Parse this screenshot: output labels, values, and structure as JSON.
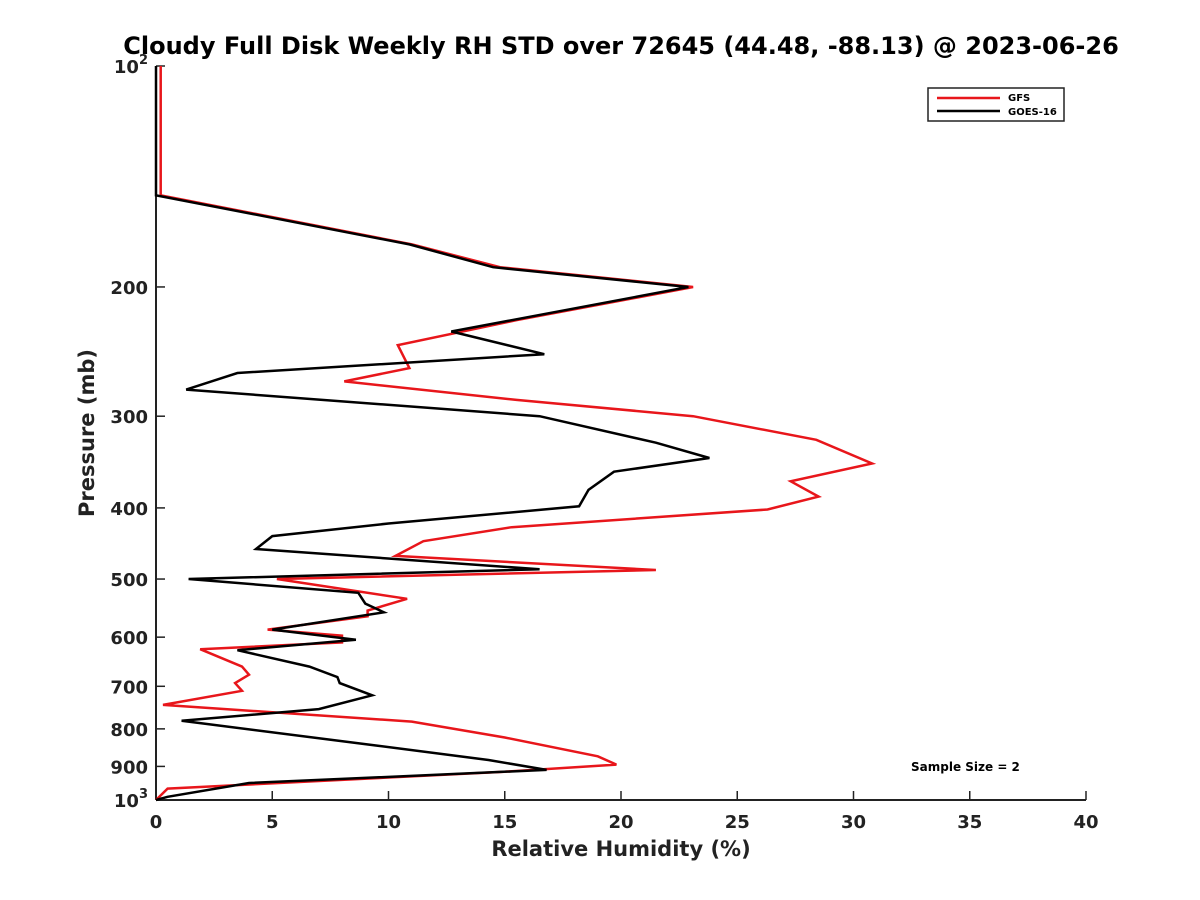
{
  "chart_data": {
    "type": "line",
    "title": "Cloudy Full Disk Weekly RH STD over 72645 (44.48, -88.13) @ 2023-06-26",
    "xlabel": "Relative Humidity (%)",
    "ylabel": "Pressure (mb)",
    "xlim": [
      0,
      40
    ],
    "ylim": [
      1000,
      100
    ],
    "y_scale": "log",
    "y_reversed": true,
    "x_ticks": [
      0,
      5,
      10,
      15,
      20,
      25,
      30,
      35,
      40
    ],
    "y_ticks": [
      {
        "value": 100,
        "base": "10",
        "exp": "2"
      },
      {
        "value": 200,
        "label": "200"
      },
      {
        "value": 300,
        "label": "300"
      },
      {
        "value": 400,
        "label": "400"
      },
      {
        "value": 500,
        "label": "500"
      },
      {
        "value": 600,
        "label": "600"
      },
      {
        "value": 700,
        "label": "700"
      },
      {
        "value": 800,
        "label": "800"
      },
      {
        "value": 900,
        "label": "900"
      },
      {
        "value": 1000,
        "base": "10",
        "exp": "3"
      }
    ],
    "legend_position": "top-right",
    "annotation": "Sample Size = 2",
    "series": [
      {
        "name": "GFS",
        "color": "#e8161b",
        "points": [
          [
            0.2,
            100
          ],
          [
            0.2,
            150
          ],
          [
            11.0,
            175
          ],
          [
            14.8,
            188
          ],
          [
            23.1,
            200
          ],
          [
            15.5,
            222
          ],
          [
            10.4,
            240
          ],
          [
            10.9,
            258
          ],
          [
            8.1,
            269
          ],
          [
            15.5,
            285
          ],
          [
            23.1,
            300
          ],
          [
            28.4,
            323
          ],
          [
            30.8,
            348
          ],
          [
            27.3,
            368
          ],
          [
            28.5,
            386
          ],
          [
            26.3,
            402
          ],
          [
            15.3,
            425
          ],
          [
            11.5,
            444
          ],
          [
            10.3,
            465
          ],
          [
            21.5,
            486
          ],
          [
            5.2,
            500
          ],
          [
            10.8,
            532
          ],
          [
            9.1,
            552
          ],
          [
            9.1,
            562
          ],
          [
            4.8,
            586
          ],
          [
            8.0,
            597
          ],
          [
            8.0,
            610
          ],
          [
            1.9,
            623
          ],
          [
            3.7,
            658
          ],
          [
            4.0,
            675
          ],
          [
            3.4,
            693
          ],
          [
            3.7,
            710
          ],
          [
            0.3,
            742
          ],
          [
            11.0,
            782
          ],
          [
            15.0,
            822
          ],
          [
            19.0,
            872
          ],
          [
            19.8,
            895
          ],
          [
            15.0,
            915
          ],
          [
            0.5,
            965
          ],
          [
            0.0,
            1000
          ]
        ]
      },
      {
        "name": "GOES-16",
        "color": "#000000",
        "points": [
          [
            0.0,
            100
          ],
          [
            0.0,
            150
          ],
          [
            10.9,
            175
          ],
          [
            14.5,
            188
          ],
          [
            22.9,
            200
          ],
          [
            12.7,
            230
          ],
          [
            16.7,
            247
          ],
          [
            3.5,
            262
          ],
          [
            1.3,
            276
          ],
          [
            16.5,
            300
          ],
          [
            21.5,
            326
          ],
          [
            23.8,
            342
          ],
          [
            19.7,
            357
          ],
          [
            18.6,
            378
          ],
          [
            18.2,
            398
          ],
          [
            10.0,
            420
          ],
          [
            5.0,
            437
          ],
          [
            4.3,
            455
          ],
          [
            16.5,
            485
          ],
          [
            1.4,
            500
          ],
          [
            8.7,
            522
          ],
          [
            9.0,
            540
          ],
          [
            9.8,
            555
          ],
          [
            5.0,
            586
          ],
          [
            8.6,
            605
          ],
          [
            3.5,
            625
          ],
          [
            6.6,
            658
          ],
          [
            7.8,
            680
          ],
          [
            7.9,
            693
          ],
          [
            9.3,
            720
          ],
          [
            7.0,
            752
          ],
          [
            1.1,
            780
          ],
          [
            9.5,
            843
          ],
          [
            14.3,
            882
          ],
          [
            16.8,
            910
          ],
          [
            4.0,
            948
          ],
          [
            0.5,
            990
          ],
          [
            0.0,
            1000
          ]
        ]
      }
    ]
  }
}
